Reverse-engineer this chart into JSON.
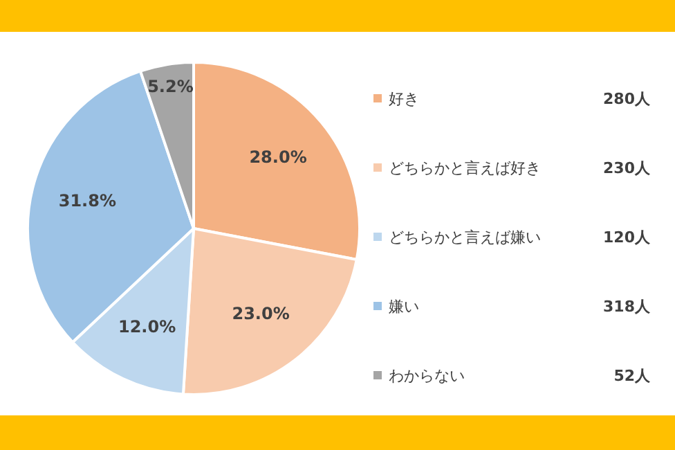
{
  "chart_data": {
    "type": "pie",
    "categories": [
      "好き",
      "どちらかと言えば好き",
      "どちらかと言えば嫌い",
      "嫌い",
      "わからない"
    ],
    "values": [
      28.0,
      23.0,
      12.0,
      31.8,
      5.2
    ],
    "colors": [
      "#f4b183",
      "#f8cbad",
      "#bdd7ee",
      "#9dc3e6",
      "#a5a5a5"
    ],
    "value_labels": [
      "28.0%",
      "23.0%",
      "12.0%",
      "31.8%",
      "5.2%"
    ],
    "annotations": [
      "280人",
      "230人",
      "120人",
      "318人",
      "52人"
    ],
    "legend": "right"
  }
}
